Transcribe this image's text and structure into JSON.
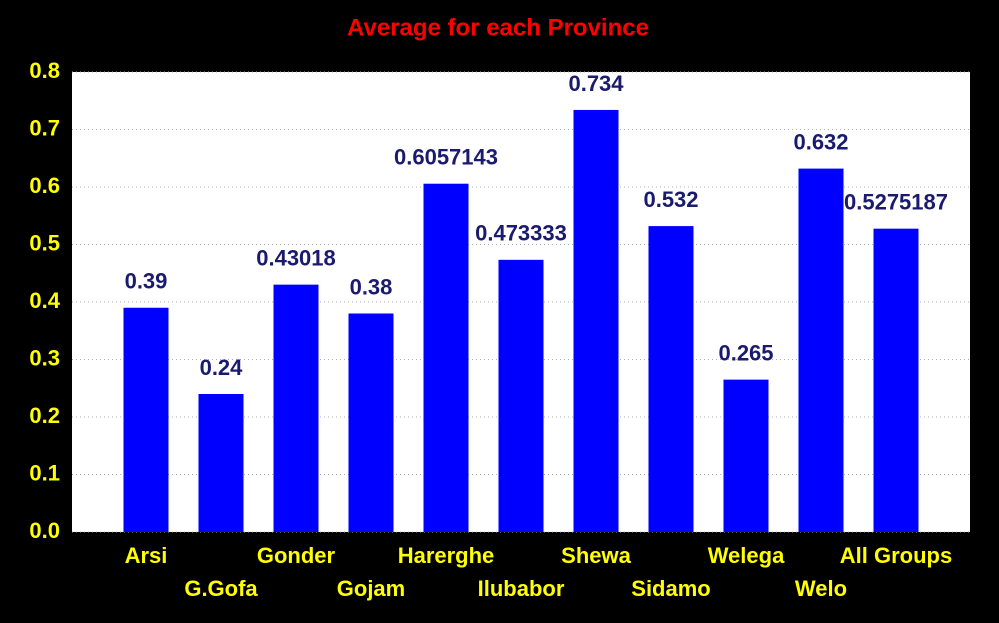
{
  "chart_data": {
    "type": "bar",
    "title": "Average for each Province",
    "categories": [
      "Arsi",
      "G.Gofa",
      "Gonder",
      "Gojam",
      "Harerghe",
      "Ilubabor",
      "Shewa",
      "Sidamo",
      "Welega",
      "Welo",
      "All Groups"
    ],
    "values": [
      0.39,
      0.24,
      0.43018,
      0.38,
      0.6057143,
      0.473333,
      0.734,
      0.532,
      0.265,
      0.632,
      0.5275187
    ],
    "color": "#0000ff",
    "ylim": [
      0,
      0.8
    ],
    "yticks": [
      {
        "value": 0,
        "label": "0.0"
      },
      0.1,
      0.2,
      0.3,
      0.4,
      0.5,
      0.6,
      0.7,
      0.8
    ],
    "grid": true
  }
}
